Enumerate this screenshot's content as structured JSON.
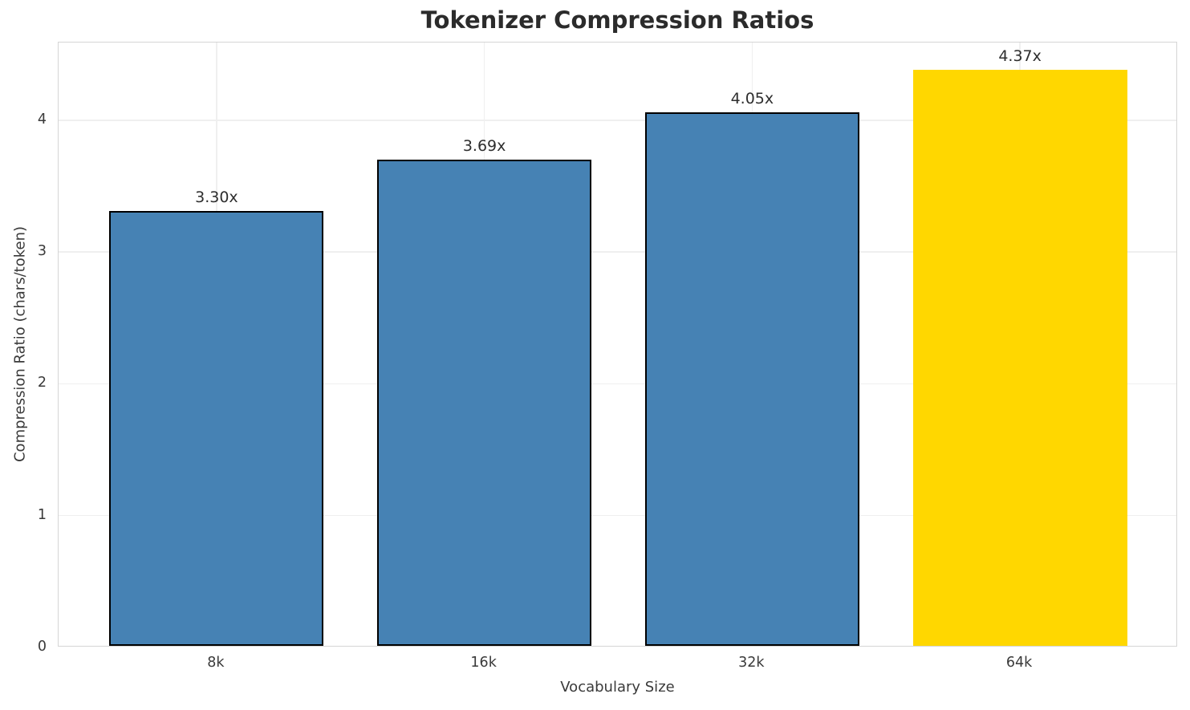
{
  "chart_data": {
    "type": "bar",
    "title": "Tokenizer Compression Ratios",
    "xlabel": "Vocabulary Size",
    "ylabel": "Compression Ratio (chars/token)",
    "categories": [
      "8k",
      "16k",
      "32k",
      "64k"
    ],
    "values": [
      3.3,
      3.69,
      4.05,
      4.37
    ],
    "value_labels": [
      "3.30x",
      "3.69x",
      "4.05x",
      "4.37x"
    ],
    "bar_colors": [
      "#4682B4",
      "#4682B4",
      "#4682B4",
      "#FFD700"
    ],
    "bar_edge_colors": [
      "#000000",
      "#000000",
      "#000000",
      "none"
    ],
    "highlight_index": 3,
    "yticks": [
      0,
      1,
      2,
      3,
      4
    ],
    "ylim": [
      0,
      4.59
    ],
    "xlim": [
      -0.59,
      3.59
    ],
    "bar_width_units": 0.8,
    "grid": true,
    "legend_position": "none"
  },
  "colors": {
    "grid": "#efefef",
    "spine": "#d5d5d5",
    "title_text": "#2b2b2b",
    "tick_text": "#3a3a3a",
    "value_label_text": "#2e2e2e",
    "bar_blue": "#4682B4",
    "bar_gold": "#FFD700",
    "bar_edge": "#000000",
    "background": "#ffffff"
  }
}
